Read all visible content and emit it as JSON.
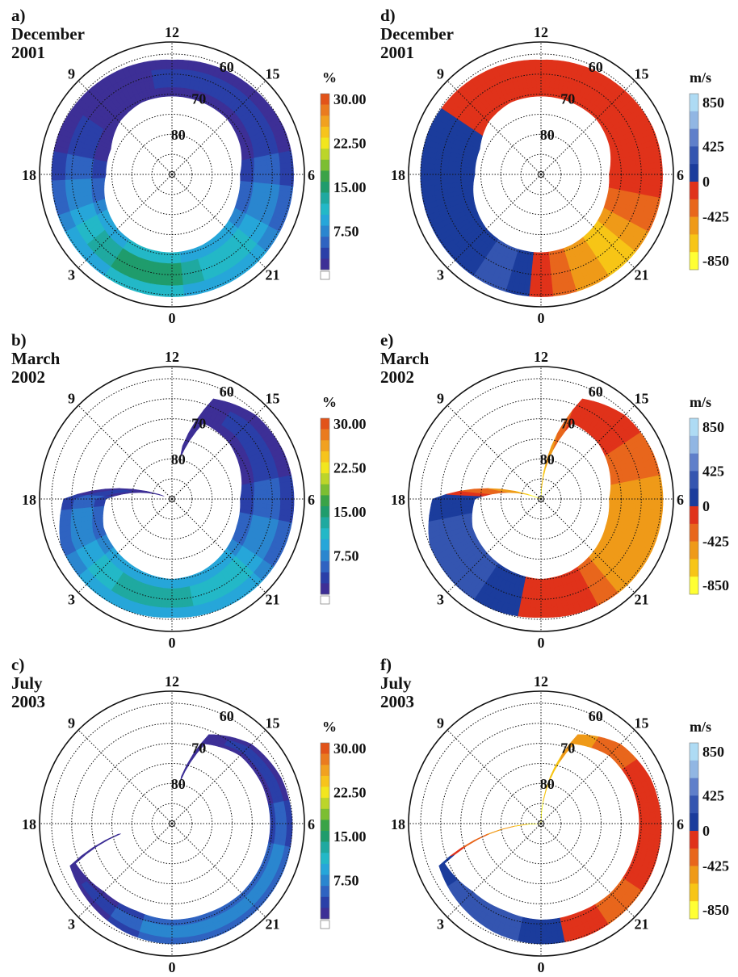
{
  "palettes": {
    "percent": [
      "#ffffff",
      "#3d2f96",
      "#2a3fa8",
      "#2f63c1",
      "#2a86cf",
      "#26a6d9",
      "#23b8c7",
      "#1fa9a0",
      "#1f9c6c",
      "#3aa347",
      "#7cbe32",
      "#bcd52a",
      "#f2e61e",
      "#f7c41c",
      "#f1a120",
      "#ea7b1f",
      "#e25319"
    ],
    "velocity": [
      "#ffff33",
      "#f7c516",
      "#ef9a18",
      "#e8661c",
      "#e0321a",
      "#1b3c9c",
      "#3455b0",
      "#5f7fca",
      "#91b6e3",
      "#aedbf4"
    ]
  },
  "chart_data": [
    {
      "id": "a",
      "type": "heatmap",
      "projection": "polar",
      "label": "a)",
      "month": "December",
      "year": "2001",
      "palette": "percent",
      "mlt_labels": [
        "12",
        "9",
        "6",
        "3",
        "0",
        "21",
        "18",
        "15"
      ],
      "lat_labels": [
        "60",
        "70",
        "80"
      ],
      "colorbar": {
        "unit": "%",
        "ticks": [
          "30.00",
          "22.50",
          "15.00",
          "7.50"
        ]
      },
      "region": [
        {
          "mlt": 0,
          "inner": 70.5,
          "outer": 59.5,
          "level": 9
        },
        {
          "mlt": 1.5,
          "inner": 70.5,
          "outer": 59.5,
          "level": 9
        },
        {
          "mlt": 3,
          "inner": 70.8,
          "outer": 59.7,
          "level": 8
        },
        {
          "mlt": 4.5,
          "inner": 72,
          "outer": 59.8,
          "level": 6
        },
        {
          "mlt": 6,
          "inner": 73.5,
          "outer": 60,
          "level": 3
        },
        {
          "mlt": 7.5,
          "inner": 73.5,
          "outer": 60,
          "level": 2
        },
        {
          "mlt": 9,
          "inner": 71.5,
          "outer": 60.5,
          "level": 1
        },
        {
          "mlt": 10.5,
          "inner": 70.5,
          "outer": 61,
          "level": 1
        },
        {
          "mlt": 12,
          "inner": 70.5,
          "outer": 61.5,
          "level": 2
        },
        {
          "mlt": 13.5,
          "inner": 70.5,
          "outer": 61,
          "level": 2
        },
        {
          "mlt": 15,
          "inner": 70.5,
          "outer": 60.5,
          "level": 2
        },
        {
          "mlt": 16.5,
          "inner": 71.5,
          "outer": 59.8,
          "level": 2
        },
        {
          "mlt": 18,
          "inner": 73,
          "outer": 59.7,
          "level": 3
        },
        {
          "mlt": 19.5,
          "inner": 72.5,
          "outer": 59.6,
          "level": 5
        },
        {
          "mlt": 21,
          "inner": 71.5,
          "outer": 59.5,
          "level": 7
        },
        {
          "mlt": 22.5,
          "inner": 70.8,
          "outer": 59.5,
          "level": 7
        }
      ]
    },
    {
      "id": "d",
      "type": "heatmap",
      "projection": "polar",
      "label": "d)",
      "month": "December",
      "year": "2001",
      "palette": "velocity",
      "mlt_labels": [
        "12",
        "9",
        "6",
        "3",
        "0",
        "21",
        "18",
        "15"
      ],
      "lat_labels": [
        "60",
        "70",
        "80"
      ],
      "colorbar": {
        "unit": "m/s",
        "ticks": [
          "850",
          "425",
          "0",
          "-425",
          "-850"
        ]
      },
      "region": [
        {
          "mlt": 0,
          "inner": 70.5,
          "outer": 59.5,
          "level": 4
        },
        {
          "mlt": 1.5,
          "inner": 70.5,
          "outer": 59.5,
          "level": 6
        },
        {
          "mlt": 3,
          "inner": 70.8,
          "outer": 59.7,
          "level": 5
        },
        {
          "mlt": 4.5,
          "inner": 72,
          "outer": 59.8,
          "level": 5
        },
        {
          "mlt": 6,
          "inner": 73.5,
          "outer": 60,
          "level": 5
        },
        {
          "mlt": 7.5,
          "inner": 73.5,
          "outer": 60,
          "level": 5
        },
        {
          "mlt": 9,
          "inner": 71.5,
          "outer": 60.5,
          "level": 4
        },
        {
          "mlt": 10.5,
          "inner": 70.5,
          "outer": 61,
          "level": 4
        },
        {
          "mlt": 12,
          "inner": 70.5,
          "outer": 61.5,
          "level": 4
        },
        {
          "mlt": 13.5,
          "inner": 70.5,
          "outer": 61,
          "level": 4
        },
        {
          "mlt": 15,
          "inner": 70.5,
          "outer": 60.5,
          "level": 4
        },
        {
          "mlt": 16.5,
          "inner": 71.5,
          "outer": 59.8,
          "level": 4
        },
        {
          "mlt": 18,
          "inner": 73,
          "outer": 59.7,
          "level": 4
        },
        {
          "mlt": 19.5,
          "inner": 72.5,
          "outer": 59.6,
          "level": 3
        },
        {
          "mlt": 21,
          "inner": 71.5,
          "outer": 59.5,
          "level": 1
        },
        {
          "mlt": 22.5,
          "inner": 70.8,
          "outer": 59.5,
          "level": 2
        }
      ]
    },
    {
      "id": "b",
      "type": "heatmap",
      "projection": "polar",
      "label": "b)",
      "month": "March",
      "year": "2002",
      "palette": "percent",
      "mlt_labels": [
        "12",
        "9",
        "6",
        "3",
        "0",
        "21",
        "18",
        "15"
      ],
      "lat_labels": [
        "60",
        "70",
        "80"
      ],
      "colorbar": {
        "unit": "%",
        "ticks": [
          "30.00",
          "22.50",
          "15.00",
          "7.50"
        ]
      },
      "region": [
        {
          "mlt": 0,
          "inner": 70,
          "outer": 60.5,
          "level": 8
        },
        {
          "mlt": 1.5,
          "inner": 70.5,
          "outer": 60,
          "level": 8
        },
        {
          "mlt": 3,
          "inner": 71,
          "outer": 59.8,
          "level": 7
        },
        {
          "mlt": 4.5,
          "inner": 71.5,
          "outer": 60,
          "level": 5
        },
        {
          "mlt": 6,
          "inner": 73.5,
          "outer": 63,
          "level": 3
        },
        {
          "mlt": 7.5,
          "inner": 90,
          "outer": 90,
          "level": 0
        },
        {
          "mlt": 9,
          "inner": 90,
          "outer": 90,
          "level": 0
        },
        {
          "mlt": 10.5,
          "inner": 90,
          "outer": 90,
          "level": 0
        },
        {
          "mlt": 12,
          "inner": 90,
          "outer": 90,
          "level": 0
        },
        {
          "mlt": 13.5,
          "inner": 69.5,
          "outer": 63,
          "level": 1
        },
        {
          "mlt": 15,
          "inner": 70,
          "outer": 60.5,
          "level": 2
        },
        {
          "mlt": 16.5,
          "inner": 71.5,
          "outer": 59.8,
          "level": 2
        },
        {
          "mlt": 18,
          "inner": 73,
          "outer": 59.6,
          "level": 3
        },
        {
          "mlt": 19.5,
          "inner": 72.5,
          "outer": 59.5,
          "level": 4
        },
        {
          "mlt": 21,
          "inner": 71.5,
          "outer": 59.6,
          "level": 7
        },
        {
          "mlt": 22.5,
          "inner": 70.5,
          "outer": 60,
          "level": 7
        }
      ]
    },
    {
      "id": "e",
      "type": "heatmap",
      "projection": "polar",
      "label": "e)",
      "month": "March",
      "year": "2002",
      "palette": "velocity",
      "mlt_labels": [
        "12",
        "9",
        "6",
        "3",
        "0",
        "21",
        "18",
        "15"
      ],
      "lat_labels": [
        "60",
        "70",
        "80"
      ],
      "colorbar": {
        "unit": "m/s",
        "ticks": [
          "850",
          "425",
          "0",
          "-425",
          "-850"
        ]
      },
      "region": [
        {
          "mlt": 0,
          "inner": 70,
          "outer": 60.5,
          "level": 4
        },
        {
          "mlt": 1.5,
          "inner": 70.5,
          "outer": 60,
          "level": 5
        },
        {
          "mlt": 3,
          "inner": 71,
          "outer": 59.8,
          "level": 6
        },
        {
          "mlt": 4.5,
          "inner": 71.5,
          "outer": 60,
          "level": 6
        },
        {
          "mlt": 6,
          "inner": 73.5,
          "outer": 63,
          "level": 5
        },
        {
          "mlt": 7.5,
          "inner": 90,
          "outer": 90,
          "level": 0
        },
        {
          "mlt": 9,
          "inner": 90,
          "outer": 90,
          "level": 0
        },
        {
          "mlt": 10.5,
          "inner": 90,
          "outer": 90,
          "level": 0
        },
        {
          "mlt": 12,
          "inner": 90,
          "outer": 90,
          "level": 0
        },
        {
          "mlt": 13.5,
          "inner": 69.5,
          "outer": 63,
          "level": 4
        },
        {
          "mlt": 15,
          "inner": 70,
          "outer": 60.5,
          "level": 4
        },
        {
          "mlt": 16.5,
          "inner": 71.5,
          "outer": 59.8,
          "level": 3
        },
        {
          "mlt": 18,
          "inner": 73,
          "outer": 59.6,
          "level": 2
        },
        {
          "mlt": 19.5,
          "inner": 72.5,
          "outer": 59.5,
          "level": 2
        },
        {
          "mlt": 21,
          "inner": 71.5,
          "outer": 59.6,
          "level": 2
        },
        {
          "mlt": 22.5,
          "inner": 70.5,
          "outer": 60,
          "level": 4
        }
      ]
    },
    {
      "id": "c",
      "type": "heatmap",
      "projection": "polar",
      "label": "c)",
      "month": "July",
      "year": "2003",
      "palette": "percent",
      "mlt_labels": [
        "12",
        "9",
        "6",
        "3",
        "0",
        "21",
        "18",
        "15"
      ],
      "lat_labels": [
        "60",
        "70",
        "80"
      ],
      "colorbar": {
        "unit": "%",
        "ticks": [
          "30.00",
          "22.50",
          "15.00",
          "7.50"
        ]
      },
      "region": [
        {
          "mlt": 0,
          "inner": 66,
          "outer": 60,
          "level": 5
        },
        {
          "mlt": 1.5,
          "inner": 66.5,
          "outer": 60.5,
          "level": 3
        },
        {
          "mlt": 3,
          "inner": 66,
          "outer": 61.5,
          "level": 2
        },
        {
          "mlt": 4.5,
          "inner": 64,
          "outer": 62.5,
          "level": 1
        },
        {
          "mlt": 6,
          "inner": 90,
          "outer": 90,
          "level": 0
        },
        {
          "mlt": 7.5,
          "inner": 90,
          "outer": 90,
          "level": 0
        },
        {
          "mlt": 9,
          "inner": 90,
          "outer": 90,
          "level": 0
        },
        {
          "mlt": 10.5,
          "inner": 90,
          "outer": 90,
          "level": 0
        },
        {
          "mlt": 12,
          "inner": 90,
          "outer": 90,
          "level": 0
        },
        {
          "mlt": 13.5,
          "inner": 68.5,
          "outer": 66,
          "level": 1
        },
        {
          "mlt": 15,
          "inner": 66,
          "outer": 62,
          "level": 2
        },
        {
          "mlt": 16.5,
          "inner": 65.5,
          "outer": 60.5,
          "level": 2
        },
        {
          "mlt": 18,
          "inner": 65.5,
          "outer": 60,
          "level": 3
        },
        {
          "mlt": 19.5,
          "inner": 65.5,
          "outer": 59.8,
          "level": 4
        },
        {
          "mlt": 21,
          "inner": 65.5,
          "outer": 59.8,
          "level": 5
        },
        {
          "mlt": 22.5,
          "inner": 66,
          "outer": 59.8,
          "level": 5
        }
      ]
    },
    {
      "id": "f",
      "type": "heatmap",
      "projection": "polar",
      "label": "f)",
      "month": "July",
      "year": "2003",
      "palette": "velocity",
      "mlt_labels": [
        "12",
        "9",
        "6",
        "3",
        "0",
        "21",
        "18",
        "15"
      ],
      "lat_labels": [
        "60",
        "70",
        "80"
      ],
      "colorbar": {
        "unit": "m/s",
        "ticks": [
          "850",
          "425",
          "0",
          "-425",
          "-850"
        ]
      },
      "region": [
        {
          "mlt": 0,
          "inner": 66,
          "outer": 60,
          "level": 5
        },
        {
          "mlt": 1.5,
          "inner": 66.5,
          "outer": 60.5,
          "level": 6
        },
        {
          "mlt": 3,
          "inner": 66,
          "outer": 61.5,
          "level": 6
        },
        {
          "mlt": 4.5,
          "inner": 64,
          "outer": 62.5,
          "level": 5
        },
        {
          "mlt": 6,
          "inner": 90,
          "outer": 90,
          "level": 0
        },
        {
          "mlt": 7.5,
          "inner": 90,
          "outer": 90,
          "level": 0
        },
        {
          "mlt": 9,
          "inner": 90,
          "outer": 90,
          "level": 0
        },
        {
          "mlt": 10.5,
          "inner": 90,
          "outer": 90,
          "level": 0
        },
        {
          "mlt": 12,
          "inner": 90,
          "outer": 90,
          "level": 0
        },
        {
          "mlt": 13.5,
          "inner": 68.5,
          "outer": 66,
          "level": 2
        },
        {
          "mlt": 15,
          "inner": 66,
          "outer": 62,
          "level": 3
        },
        {
          "mlt": 16.5,
          "inner": 65.5,
          "outer": 60.5,
          "level": 4
        },
        {
          "mlt": 18,
          "inner": 65.5,
          "outer": 60,
          "level": 4
        },
        {
          "mlt": 19.5,
          "inner": 65.5,
          "outer": 59.8,
          "level": 4
        },
        {
          "mlt": 21,
          "inner": 65.5,
          "outer": 59.8,
          "level": 3
        },
        {
          "mlt": 22.5,
          "inner": 66,
          "outer": 59.8,
          "level": 4
        }
      ]
    }
  ]
}
